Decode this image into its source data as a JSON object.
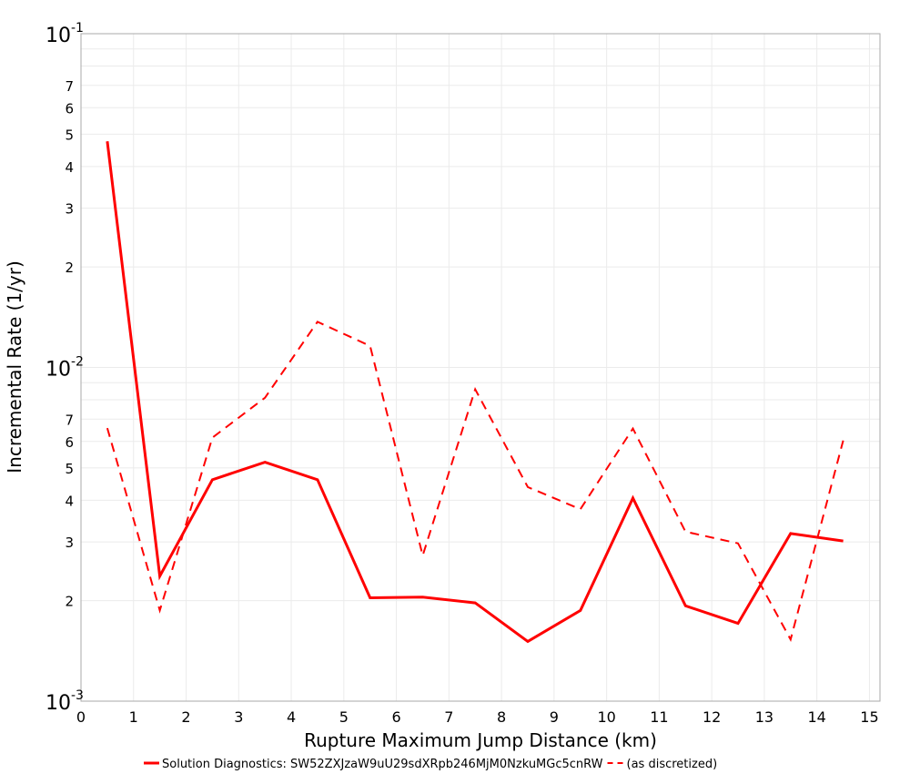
{
  "chart_data": {
    "type": "line",
    "title": "",
    "xlabel": "Rupture Maximum Jump Distance (km)",
    "ylabel": "Incremental Rate (1/yr)",
    "xlim": [
      0,
      15.2
    ],
    "ylim": [
      0.001,
      0.1
    ],
    "yscale": "log",
    "grid": true,
    "legend_position": "bottom",
    "x_ticks": [
      "0",
      "1",
      "2",
      "3",
      "4",
      "5",
      "6",
      "7",
      "8",
      "9",
      "10",
      "11",
      "12",
      "13",
      "14",
      "15"
    ],
    "y_major_ticks": [
      {
        "base": "10",
        "exp": "-1",
        "value": 0.1
      },
      {
        "base": "10",
        "exp": "-2",
        "value": 0.01
      },
      {
        "base": "10",
        "exp": "-3",
        "value": 0.001
      }
    ],
    "y_minor_tick_labels": [
      "2",
      "3",
      "4",
      "5",
      "6",
      "7"
    ],
    "x": [
      0.5,
      1.5,
      2.5,
      3.5,
      4.5,
      5.5,
      6.5,
      7.5,
      8.5,
      9.5,
      10.5,
      11.5,
      12.5,
      13.5,
      14.5
    ],
    "series": [
      {
        "name": "Solution Diagnostics: SW52ZXJzaW9uU29sdXRpb246MjM0NzkuMGc5cnRW",
        "style": "solid",
        "color": "#ff0000",
        "values": [
          0.0476,
          0.00237,
          0.00461,
          0.0052,
          0.00461,
          0.00204,
          0.00205,
          0.00197,
          0.00151,
          0.00187,
          0.00406,
          0.00193,
          0.00171,
          0.00318,
          0.00302
        ]
      },
      {
        "name": "(as discretized)",
        "style": "dashed",
        "color": "#ff0000",
        "values": [
          0.00658,
          0.00187,
          0.00616,
          0.00811,
          0.0137,
          0.0116,
          0.00273,
          0.0086,
          0.00438,
          0.00376,
          0.00656,
          0.00322,
          0.00297,
          0.00153,
          0.00604
        ]
      }
    ]
  },
  "colors": {
    "series": "#ff0000",
    "grid": "#ebebeb",
    "frame": "#aaaaaa",
    "background": "#ffffff"
  }
}
